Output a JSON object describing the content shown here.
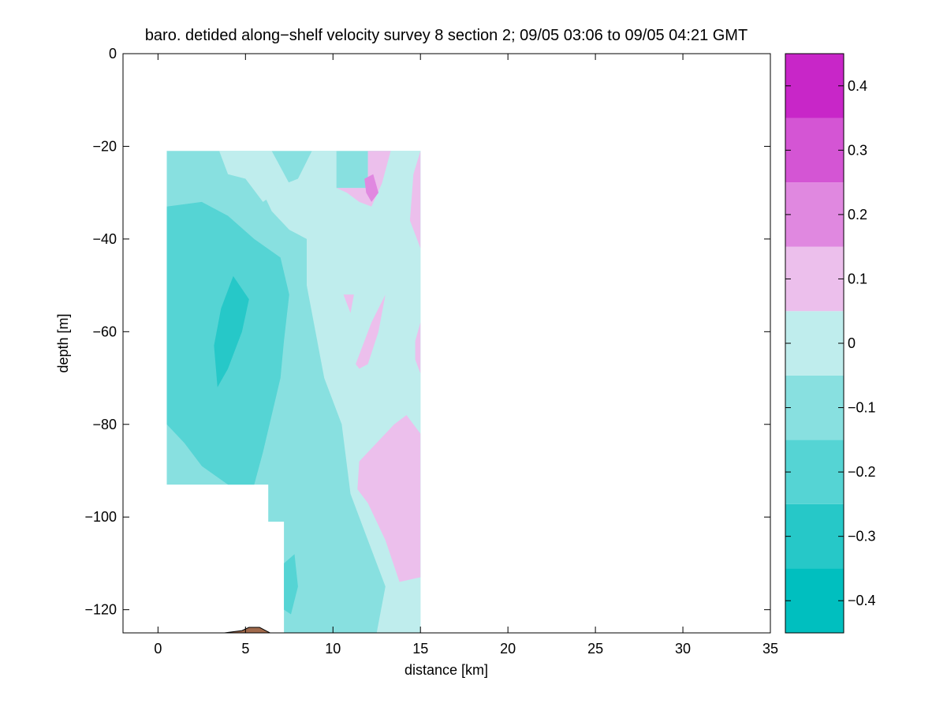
{
  "chart_data": {
    "type": "contour",
    "title": "baro. detided along−shelf velocity survey 8 section 2; 09/05 03:06 to 09/05 04:21 GMT",
    "xlabel": "distance [km]",
    "ylabel": "depth [m]",
    "xlim": [
      -2,
      35
    ],
    "ylim": [
      -125,
      0
    ],
    "xticks": [
      0,
      5,
      10,
      15,
      20,
      25,
      30,
      35
    ],
    "yticks": [
      0,
      -20,
      -40,
      -60,
      -80,
      -100,
      -120
    ],
    "xtick_labels": [
      "0",
      "5",
      "10",
      "15",
      "20",
      "25",
      "30",
      "35"
    ],
    "ytick_labels": [
      "0",
      "−20",
      "−40",
      "−60",
      "−80",
      "−100",
      "−120"
    ],
    "colorbar": {
      "limits": [
        -0.45,
        0.45
      ],
      "levels": [
        -0.45,
        -0.35,
        -0.25,
        -0.15,
        -0.05,
        0.05,
        0.15,
        0.25,
        0.35,
        0.45
      ],
      "colors": [
        "#00bfbf",
        "#26c8c8",
        "#55d4d4",
        "#88e0e0",
        "#bfeded",
        "#ecbfec",
        "#e088e0",
        "#d455d4",
        "#c826c8",
        "#bf00bf"
      ],
      "ticks": [
        -0.4,
        -0.3,
        -0.2,
        -0.1,
        0,
        0.1,
        0.2,
        0.3,
        0.4
      ],
      "tick_labels": [
        "−0.4",
        "−0.3",
        "−0.2",
        "−0.1",
        "0",
        "0.1",
        "0.2",
        "0.3",
        "0.4"
      ]
    },
    "bottom_color": "#a0694b",
    "regions": [
      {
        "level": -0.1,
        "points": [
          [
            0.5,
            -21
          ],
          [
            15,
            -21
          ],
          [
            15,
            -125
          ],
          [
            7.2,
            -125
          ],
          [
            7.2,
            -101
          ],
          [
            6.3,
            -101
          ],
          [
            6.3,
            -93
          ],
          [
            0.5,
            -93
          ],
          [
            0.5,
            -61
          ],
          [
            1.5,
            -61
          ],
          [
            1.5,
            -45
          ],
          [
            0.5,
            -45
          ]
        ]
      },
      {
        "level": 0,
        "points": [
          [
            3.5,
            -21
          ],
          [
            6.5,
            -21
          ],
          [
            7.5,
            -28
          ],
          [
            6.0,
            -32
          ],
          [
            5.0,
            -27
          ],
          [
            4.0,
            -26
          ]
        ]
      },
      {
        "level": 0,
        "points": [
          [
            8.8,
            -21
          ],
          [
            10.2,
            -21
          ],
          [
            10.2,
            -29
          ],
          [
            12.0,
            -29
          ],
          [
            12.0,
            -21
          ],
          [
            15,
            -21
          ],
          [
            15,
            -125
          ],
          [
            12.5,
            -125
          ],
          [
            13.0,
            -115
          ],
          [
            12.0,
            -105
          ],
          [
            11.0,
            -95
          ],
          [
            10.5,
            -80
          ],
          [
            9.5,
            -70
          ],
          [
            9.0,
            -60
          ],
          [
            8.5,
            -50
          ],
          [
            8.5,
            -40
          ],
          [
            7.5,
            -38
          ],
          [
            6.5,
            -34
          ],
          [
            6.0,
            -30
          ],
          [
            8.0,
            -27
          ]
        ]
      },
      {
        "level": -0.2,
        "points": [
          [
            0.5,
            -33
          ],
          [
            2.5,
            -32
          ],
          [
            4.0,
            -35
          ],
          [
            5.5,
            -40
          ],
          [
            7.0,
            -44
          ],
          [
            7.5,
            -52
          ],
          [
            7.2,
            -62
          ],
          [
            7.0,
            -70
          ],
          [
            6.5,
            -78
          ],
          [
            6.0,
            -86
          ],
          [
            5.5,
            -93
          ],
          [
            4.0,
            -93
          ],
          [
            2.5,
            -89
          ],
          [
            1.5,
            -84
          ],
          [
            0.5,
            -80
          ]
        ]
      },
      {
        "level": -0.3,
        "points": [
          [
            3.6,
            -55
          ],
          [
            4.3,
            -48
          ],
          [
            5.2,
            -53
          ],
          [
            4.8,
            -60
          ],
          [
            4.0,
            -68
          ],
          [
            3.4,
            -72
          ],
          [
            3.2,
            -63
          ]
        ]
      },
      {
        "level": 0.1,
        "points": [
          [
            10.2,
            -29
          ],
          [
            12.0,
            -29
          ],
          [
            12.0,
            -21
          ],
          [
            13.3,
            -21
          ],
          [
            12.8,
            -28
          ],
          [
            12.2,
            -33
          ],
          [
            11.5,
            -32
          ],
          [
            10.8,
            -30
          ]
        ]
      },
      {
        "level": 0.1,
        "points": [
          [
            14.6,
            -26
          ],
          [
            15,
            -21
          ],
          [
            15,
            -42
          ],
          [
            14.4,
            -36
          ]
        ]
      },
      {
        "level": 0.1,
        "points": [
          [
            11.3,
            -67
          ],
          [
            12.2,
            -58
          ],
          [
            13.0,
            -52
          ],
          [
            12.6,
            -60
          ],
          [
            12.0,
            -67
          ],
          [
            11.5,
            -68
          ]
        ]
      },
      {
        "level": 0.1,
        "points": [
          [
            10.6,
            -52
          ],
          [
            11.2,
            -52
          ],
          [
            11.0,
            -56
          ]
        ]
      },
      {
        "level": 0.1,
        "points": [
          [
            14.7,
            -62
          ],
          [
            15,
            -58
          ],
          [
            15,
            -69
          ],
          [
            14.7,
            -66
          ]
        ]
      },
      {
        "level": 0.1,
        "points": [
          [
            11.5,
            -88
          ],
          [
            12.5,
            -84
          ],
          [
            13.5,
            -80
          ],
          [
            14.2,
            -78
          ],
          [
            15,
            -82
          ],
          [
            15,
            -113
          ],
          [
            13.8,
            -114
          ],
          [
            13.0,
            -105
          ],
          [
            12.0,
            -97
          ],
          [
            11.4,
            -94
          ]
        ]
      },
      {
        "level": -0.2,
        "points": [
          [
            7.2,
            -110
          ],
          [
            7.8,
            -108
          ],
          [
            8.0,
            -115
          ],
          [
            7.6,
            -121
          ],
          [
            7.2,
            -120
          ]
        ]
      },
      {
        "level": 0.2,
        "points": [
          [
            11.8,
            -27
          ],
          [
            12.3,
            -26
          ],
          [
            12.6,
            -30
          ],
          [
            12.2,
            -32
          ],
          [
            11.9,
            -30
          ]
        ]
      }
    ],
    "bottom_patch": [
      [
        3.8,
        -125
      ],
      [
        4.8,
        -124.5
      ],
      [
        5.2,
        -123.8
      ],
      [
        5.8,
        -123.8
      ],
      [
        6.2,
        -124.6
      ],
      [
        6.4,
        -125
      ]
    ]
  }
}
